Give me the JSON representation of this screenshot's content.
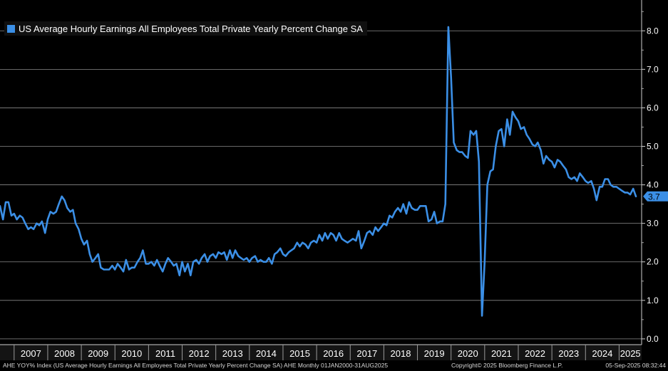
{
  "chart_data": {
    "type": "line",
    "title": "",
    "xlabel": "",
    "ylabel": "",
    "ylim": [
      -0.15,
      8.8
    ],
    "xlim": [
      2006.58,
      2025.67
    ],
    "yticks": [
      "0.0",
      "1.0",
      "2.0",
      "3.0",
      "4.0",
      "5.0",
      "6.0",
      "7.0",
      "8.0"
    ],
    "xticks": [
      "2007",
      "2008",
      "2009",
      "2010",
      "2011",
      "2012",
      "2013",
      "2014",
      "2015",
      "2016",
      "2017",
      "2018",
      "2019",
      "2020",
      "2021",
      "2022",
      "2023",
      "2024",
      "2025"
    ],
    "grid": true,
    "legend_position": "top-left",
    "last_value_label": "3.7",
    "series": [
      {
        "name": "US Average Hourly Earnings All Employees Total Private Yearly Percent Change SA",
        "color": "#3b8fe6",
        "points": [
          [
            2006.58,
            3.45
          ],
          [
            2006.67,
            3.1
          ],
          [
            2006.75,
            3.55
          ],
          [
            2006.83,
            3.55
          ],
          [
            2006.92,
            3.2
          ],
          [
            2007.0,
            3.25
          ],
          [
            2007.08,
            3.1
          ],
          [
            2007.17,
            3.2
          ],
          [
            2007.25,
            3.15
          ],
          [
            2007.33,
            3.0
          ],
          [
            2007.42,
            2.85
          ],
          [
            2007.5,
            2.9
          ],
          [
            2007.58,
            2.85
          ],
          [
            2007.67,
            3.0
          ],
          [
            2007.75,
            2.95
          ],
          [
            2007.83,
            3.05
          ],
          [
            2007.92,
            2.75
          ],
          [
            2008.0,
            3.1
          ],
          [
            2008.08,
            3.3
          ],
          [
            2008.17,
            3.25
          ],
          [
            2008.25,
            3.3
          ],
          [
            2008.33,
            3.5
          ],
          [
            2008.42,
            3.7
          ],
          [
            2008.5,
            3.6
          ],
          [
            2008.58,
            3.4
          ],
          [
            2008.67,
            3.3
          ],
          [
            2008.75,
            3.35
          ],
          [
            2008.83,
            3.0
          ],
          [
            2008.92,
            2.85
          ],
          [
            2009.0,
            2.6
          ],
          [
            2009.08,
            2.45
          ],
          [
            2009.17,
            2.55
          ],
          [
            2009.25,
            2.2
          ],
          [
            2009.33,
            2.0
          ],
          [
            2009.42,
            2.1
          ],
          [
            2009.5,
            2.2
          ],
          [
            2009.58,
            1.85
          ],
          [
            2009.67,
            1.8
          ],
          [
            2009.75,
            1.8
          ],
          [
            2009.83,
            1.8
          ],
          [
            2009.92,
            1.9
          ],
          [
            2010.0,
            1.8
          ],
          [
            2010.08,
            1.95
          ],
          [
            2010.17,
            1.85
          ],
          [
            2010.25,
            1.75
          ],
          [
            2010.33,
            2.05
          ],
          [
            2010.42,
            1.8
          ],
          [
            2010.5,
            1.85
          ],
          [
            2010.58,
            1.85
          ],
          [
            2010.67,
            2.0
          ],
          [
            2010.75,
            2.1
          ],
          [
            2010.83,
            2.3
          ],
          [
            2010.92,
            1.95
          ],
          [
            2011.0,
            1.95
          ],
          [
            2011.08,
            2.0
          ],
          [
            2011.17,
            1.9
          ],
          [
            2011.25,
            2.05
          ],
          [
            2011.33,
            1.9
          ],
          [
            2011.42,
            1.75
          ],
          [
            2011.5,
            1.95
          ],
          [
            2011.58,
            2.1
          ],
          [
            2011.67,
            2.0
          ],
          [
            2011.75,
            1.9
          ],
          [
            2011.83,
            1.95
          ],
          [
            2011.92,
            1.65
          ],
          [
            2012.0,
            2.0
          ],
          [
            2012.08,
            1.75
          ],
          [
            2012.17,
            1.95
          ],
          [
            2012.25,
            1.65
          ],
          [
            2012.33,
            2.0
          ],
          [
            2012.42,
            2.05
          ],
          [
            2012.5,
            1.95
          ],
          [
            2012.58,
            2.1
          ],
          [
            2012.67,
            2.2
          ],
          [
            2012.75,
            2.0
          ],
          [
            2012.83,
            2.15
          ],
          [
            2012.92,
            2.2
          ],
          [
            2013.0,
            2.1
          ],
          [
            2013.08,
            2.25
          ],
          [
            2013.17,
            2.2
          ],
          [
            2013.25,
            2.25
          ],
          [
            2013.33,
            2.05
          ],
          [
            2013.42,
            2.3
          ],
          [
            2013.5,
            2.1
          ],
          [
            2013.58,
            2.3
          ],
          [
            2013.67,
            2.15
          ],
          [
            2013.75,
            2.1
          ],
          [
            2013.83,
            2.05
          ],
          [
            2013.92,
            2.1
          ],
          [
            2014.0,
            2.0
          ],
          [
            2014.08,
            2.1
          ],
          [
            2014.17,
            2.15
          ],
          [
            2014.25,
            2.0
          ],
          [
            2014.33,
            2.05
          ],
          [
            2014.42,
            2.0
          ],
          [
            2014.5,
            2.0
          ],
          [
            2014.58,
            2.1
          ],
          [
            2014.67,
            1.95
          ],
          [
            2014.75,
            2.2
          ],
          [
            2014.83,
            2.25
          ],
          [
            2014.92,
            2.35
          ],
          [
            2015.0,
            2.2
          ],
          [
            2015.08,
            2.15
          ],
          [
            2015.17,
            2.25
          ],
          [
            2015.25,
            2.3
          ],
          [
            2015.33,
            2.35
          ],
          [
            2015.42,
            2.5
          ],
          [
            2015.5,
            2.4
          ],
          [
            2015.58,
            2.5
          ],
          [
            2015.67,
            2.45
          ],
          [
            2015.75,
            2.35
          ],
          [
            2015.83,
            2.5
          ],
          [
            2015.92,
            2.55
          ],
          [
            2016.0,
            2.5
          ],
          [
            2016.08,
            2.7
          ],
          [
            2016.17,
            2.55
          ],
          [
            2016.25,
            2.75
          ],
          [
            2016.33,
            2.6
          ],
          [
            2016.42,
            2.75
          ],
          [
            2016.5,
            2.7
          ],
          [
            2016.58,
            2.55
          ],
          [
            2016.67,
            2.75
          ],
          [
            2016.75,
            2.6
          ],
          [
            2016.83,
            2.55
          ],
          [
            2016.92,
            2.5
          ],
          [
            2017.0,
            2.55
          ],
          [
            2017.08,
            2.6
          ],
          [
            2017.17,
            2.55
          ],
          [
            2017.25,
            2.8
          ],
          [
            2017.33,
            2.35
          ],
          [
            2017.42,
            2.55
          ],
          [
            2017.5,
            2.75
          ],
          [
            2017.58,
            2.8
          ],
          [
            2017.67,
            2.7
          ],
          [
            2017.75,
            2.9
          ],
          [
            2017.83,
            2.8
          ],
          [
            2017.92,
            2.9
          ],
          [
            2018.0,
            3.0
          ],
          [
            2018.08,
            2.95
          ],
          [
            2018.17,
            3.2
          ],
          [
            2018.25,
            3.15
          ],
          [
            2018.33,
            3.3
          ],
          [
            2018.42,
            3.4
          ],
          [
            2018.5,
            3.3
          ],
          [
            2018.58,
            3.5
          ],
          [
            2018.67,
            3.25
          ],
          [
            2018.75,
            3.55
          ],
          [
            2018.83,
            3.4
          ],
          [
            2018.92,
            3.35
          ],
          [
            2019.0,
            3.35
          ],
          [
            2019.08,
            3.45
          ],
          [
            2019.17,
            3.45
          ],
          [
            2019.25,
            3.45
          ],
          [
            2019.33,
            3.05
          ],
          [
            2019.42,
            3.1
          ],
          [
            2019.5,
            3.3
          ],
          [
            2019.58,
            3.0
          ],
          [
            2019.67,
            3.05
          ],
          [
            2019.75,
            3.05
          ],
          [
            2019.83,
            3.5
          ],
          [
            2019.92,
            8.1
          ],
          [
            2020.0,
            6.8
          ],
          [
            2020.08,
            5.1
          ],
          [
            2020.17,
            4.9
          ],
          [
            2020.25,
            4.85
          ],
          [
            2020.33,
            4.85
          ],
          [
            2020.42,
            4.75
          ],
          [
            2020.5,
            4.7
          ],
          [
            2020.58,
            5.4
          ],
          [
            2020.67,
            5.3
          ],
          [
            2020.75,
            5.4
          ],
          [
            2020.83,
            4.6
          ],
          [
            2020.92,
            0.6
          ],
          [
            2021.0,
            2.0
          ],
          [
            2021.08,
            4.0
          ],
          [
            2021.17,
            4.35
          ],
          [
            2021.25,
            4.4
          ],
          [
            2021.33,
            5.0
          ],
          [
            2021.42,
            5.4
          ],
          [
            2021.5,
            5.45
          ],
          [
            2021.58,
            5.0
          ],
          [
            2021.67,
            5.7
          ],
          [
            2021.75,
            5.3
          ],
          [
            2021.83,
            5.9
          ],
          [
            2021.92,
            5.75
          ],
          [
            2022.0,
            5.65
          ],
          [
            2022.08,
            5.45
          ],
          [
            2022.17,
            5.5
          ],
          [
            2022.25,
            5.3
          ],
          [
            2022.33,
            5.2
          ],
          [
            2022.42,
            5.05
          ],
          [
            2022.5,
            5.0
          ],
          [
            2022.58,
            5.1
          ],
          [
            2022.67,
            4.9
          ],
          [
            2022.75,
            4.55
          ],
          [
            2022.83,
            4.75
          ],
          [
            2022.92,
            4.65
          ],
          [
            2023.0,
            4.6
          ],
          [
            2023.08,
            4.45
          ],
          [
            2023.17,
            4.65
          ],
          [
            2023.25,
            4.6
          ],
          [
            2023.33,
            4.5
          ],
          [
            2023.42,
            4.4
          ],
          [
            2023.5,
            4.2
          ],
          [
            2023.58,
            4.15
          ],
          [
            2023.67,
            4.2
          ],
          [
            2023.75,
            4.1
          ],
          [
            2023.83,
            4.3
          ],
          [
            2023.92,
            4.2
          ],
          [
            2024.0,
            4.1
          ],
          [
            2024.08,
            4.05
          ],
          [
            2024.17,
            4.1
          ],
          [
            2024.25,
            3.9
          ],
          [
            2024.33,
            3.6
          ],
          [
            2024.42,
            3.95
          ],
          [
            2024.5,
            3.95
          ],
          [
            2024.58,
            4.15
          ],
          [
            2024.67,
            4.15
          ],
          [
            2024.75,
            4.0
          ],
          [
            2024.83,
            3.95
          ],
          [
            2024.92,
            3.95
          ],
          [
            2025.0,
            3.9
          ],
          [
            2025.08,
            3.85
          ],
          [
            2025.17,
            3.8
          ],
          [
            2025.25,
            3.8
          ],
          [
            2025.33,
            3.75
          ],
          [
            2025.42,
            3.9
          ],
          [
            2025.5,
            3.7
          ]
        ]
      }
    ]
  },
  "legend": {
    "label": "US Average Hourly Earnings All Employees Total Private Yearly Percent Change SA"
  },
  "footer": {
    "left": "AHE YOY% Index (US Average Hourly Earnings All Employees Total Private Yearly Percent Change SA) AHE  Monthly 01JAN2000-31AUG2025",
    "center": "Copyright© 2025 Bloomberg Finance L.P.",
    "right": "05-Sep-2025 08:32:44"
  }
}
